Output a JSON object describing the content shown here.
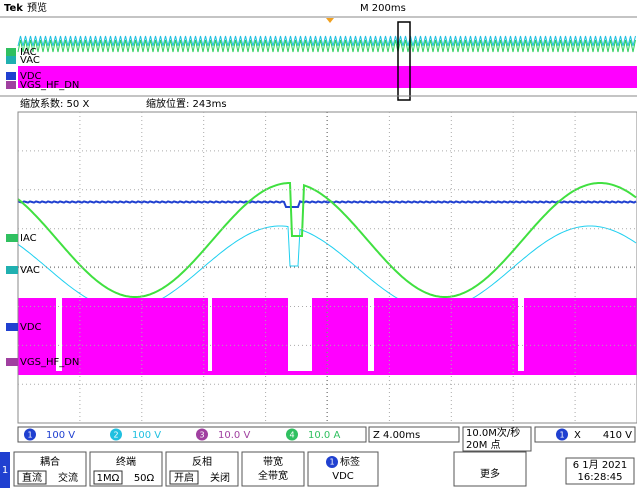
{
  "header": {
    "brand": "Tek",
    "mode": "预览",
    "timebase": "M 200ms"
  },
  "overview_labels": [
    "IAC",
    "VAC",
    "VDC",
    "VGS_HF_DN"
  ],
  "zoom": {
    "factor": "缩放系数: 50 X",
    "position": "缩放位置: 243ms"
  },
  "main_labels": [
    "IAC",
    "VAC",
    "VDC",
    "VGS_HF_DN"
  ],
  "status": {
    "channels": [
      {
        "num": "1",
        "scale": "100 V"
      },
      {
        "num": "2",
        "scale": "100 V"
      },
      {
        "num": "3",
        "scale": "10.0 V"
      },
      {
        "num": "4",
        "scale": "10.0 A"
      }
    ],
    "zoom_scale": "Z 4.00ms",
    "sample_rate": "10.0M次/秒",
    "record": "20M 点",
    "trigger_ch": "1",
    "trigger_sym": "X",
    "trigger_level": "410 V"
  },
  "menu": {
    "side": "1",
    "coupling": {
      "title": "耦合",
      "options": [
        "直流",
        "交流"
      ]
    },
    "termination": {
      "title": "终端",
      "options": [
        "1MΩ",
        "50Ω"
      ]
    },
    "invert": {
      "title": "反相",
      "options": [
        "开启",
        "关闭"
      ]
    },
    "bandwidth": {
      "title": "带宽",
      "value": "全带宽"
    },
    "label": {
      "num": "1",
      "title": "标签",
      "value": "VDC"
    },
    "more": "更多",
    "date": "6 1月 2021",
    "time": "16:28:45"
  }
}
